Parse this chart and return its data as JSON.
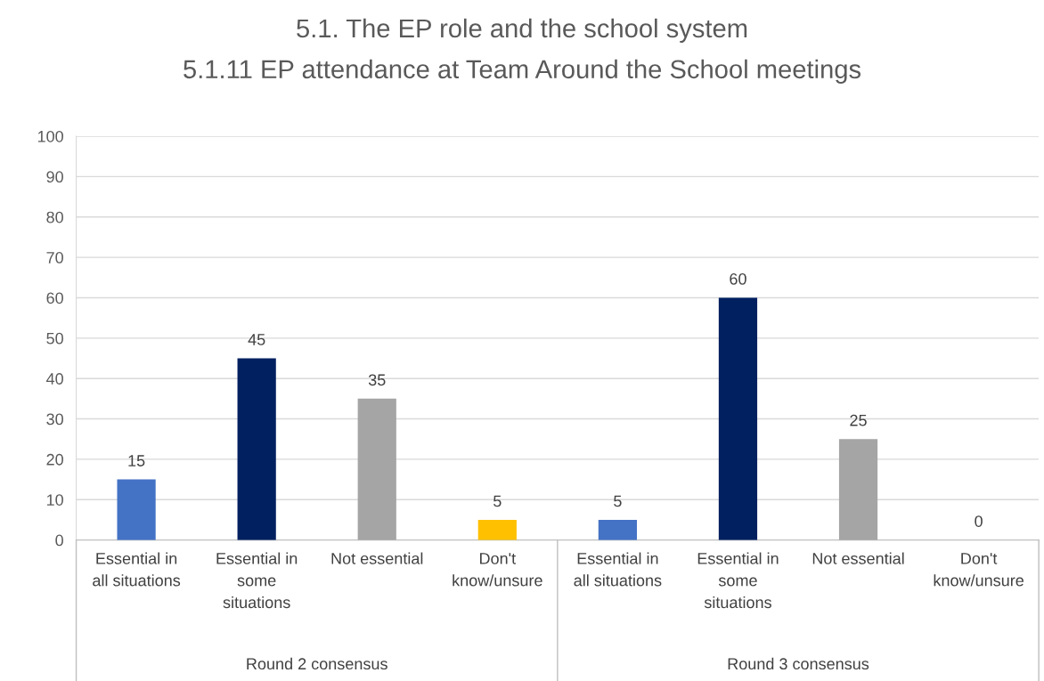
{
  "chart_data": {
    "type": "bar",
    "title": "5.1. The EP role and the school system",
    "subtitle": "5.1.11 EP attendance at Team Around the School meetings",
    "categories": [
      "Essential in\nall situations",
      "Essential in\nsome\nsituations",
      "Not essential",
      "Don't\nknow/unsure",
      "Essential in\nall situations",
      "Essential in\nsome\nsituations",
      "Not essential",
      "Don't\nknow/unsure"
    ],
    "values": [
      15,
      45,
      35,
      5,
      5,
      60,
      25,
      0
    ],
    "colors": [
      "#4472c4",
      "#002060",
      "#a5a5a5",
      "#ffc000",
      "#4472c4",
      "#002060",
      "#a5a5a5",
      "#ffc000"
    ],
    "annotations": [
      "Round 2 consensus",
      "Round 3 consensus"
    ],
    "ylim": [
      0,
      100
    ],
    "yticks": [
      0,
      10,
      20,
      30,
      40,
      50,
      60,
      70,
      80,
      90,
      100
    ],
    "grid": "y",
    "data_labels": true
  }
}
